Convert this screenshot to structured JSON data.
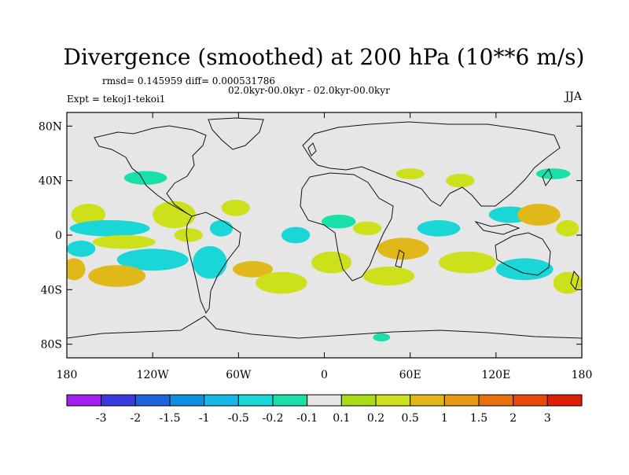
{
  "chart_data": {
    "type": "heatmap",
    "title": "Divergence (smoothed) at 200 hPa (10**6 m/s)",
    "stats": "rmsd= 0.145959 diff= 0.000531786",
    "period": "02.0kyr-00.0kyr - 02.0kyr-00.0kyr",
    "experiment": "Expt = tekoj1-tekoi1",
    "season": "JJA",
    "x_ticks": [
      "180",
      "120W",
      "60W",
      "0",
      "60E",
      "120E",
      "180"
    ],
    "y_ticks": [
      "80N",
      "40N",
      "0",
      "40S",
      "80S"
    ],
    "xlim": [
      -180,
      180
    ],
    "ylim": [
      -90,
      90
    ],
    "colorbar": {
      "labels": [
        "-3",
        "-2",
        "-1.5",
        "-1",
        "-0.5",
        "-0.2",
        "-0.1",
        "0.1",
        "0.2",
        "0.5",
        "1",
        "1.5",
        "2",
        "3"
      ],
      "colors": [
        "#a020f0",
        "#3a3ae0",
        "#1e63d8",
        "#0f8fe0",
        "#16b8e6",
        "#1ad6d6",
        "#19e0a8",
        "#e6e6e6",
        "#a8dc18",
        "#cde01c",
        "#e0b81a",
        "#e89a14",
        "#e8700e",
        "#e84a0a",
        "#e01e06"
      ]
    },
    "regions": [
      {
        "lon": -165,
        "lat": 15,
        "rlon": 12,
        "rlat": 8,
        "v": 0.3
      },
      {
        "lon": -150,
        "lat": 5,
        "rlon": 28,
        "rlat": 6,
        "v": -0.3
      },
      {
        "lon": -140,
        "lat": -5,
        "rlon": 22,
        "rlat": 5,
        "v": 0.3
      },
      {
        "lon": -120,
        "lat": -18,
        "rlon": 25,
        "rlat": 8,
        "v": -0.5
      },
      {
        "lon": -170,
        "lat": -10,
        "rlon": 10,
        "rlat": 6,
        "v": -0.3
      },
      {
        "lon": -175,
        "lat": -25,
        "rlon": 8,
        "rlat": 8,
        "v": 0.5
      },
      {
        "lon": -145,
        "lat": -30,
        "rlon": 20,
        "rlat": 8,
        "v": 0.7
      },
      {
        "lon": -105,
        "lat": 15,
        "rlon": 15,
        "rlat": 10,
        "v": 0.4
      },
      {
        "lon": -95,
        "lat": 0,
        "rlon": 10,
        "rlat": 5,
        "v": 0.3
      },
      {
        "lon": -80,
        "lat": -20,
        "rlon": 12,
        "rlat": 12,
        "v": -0.3
      },
      {
        "lon": -72,
        "lat": 5,
        "rlon": 8,
        "rlat": 6,
        "v": -0.3
      },
      {
        "lon": -62,
        "lat": 20,
        "rlon": 10,
        "rlat": 6,
        "v": 0.3
      },
      {
        "lon": -50,
        "lat": -25,
        "rlon": 14,
        "rlat": 6,
        "v": 0.5
      },
      {
        "lon": -30,
        "lat": -35,
        "rlon": 18,
        "rlat": 8,
        "v": 0.3
      },
      {
        "lon": -20,
        "lat": 0,
        "rlon": 10,
        "rlat": 6,
        "v": -0.3
      },
      {
        "lon": 5,
        "lat": -20,
        "rlon": 14,
        "rlat": 8,
        "v": 0.3
      },
      {
        "lon": -125,
        "lat": 42,
        "rlon": 15,
        "rlat": 5,
        "v": -0.2
      },
      {
        "lon": 10,
        "lat": 10,
        "rlon": 12,
        "rlat": 5,
        "v": -0.2
      },
      {
        "lon": 30,
        "lat": 5,
        "rlon": 10,
        "rlat": 5,
        "v": 0.2
      },
      {
        "lon": 55,
        "lat": -10,
        "rlon": 18,
        "rlat": 8,
        "v": 0.5
      },
      {
        "lon": 45,
        "lat": -30,
        "rlon": 18,
        "rlat": 7,
        "v": 0.3
      },
      {
        "lon": 80,
        "lat": 5,
        "rlon": 15,
        "rlat": 6,
        "v": -0.3
      },
      {
        "lon": 100,
        "lat": -20,
        "rlon": 20,
        "rlat": 8,
        "v": 0.4
      },
      {
        "lon": 130,
        "lat": 15,
        "rlon": 15,
        "rlat": 6,
        "v": -0.3
      },
      {
        "lon": 150,
        "lat": 15,
        "rlon": 15,
        "rlat": 8,
        "v": 0.6
      },
      {
        "lon": 170,
        "lat": 5,
        "rlon": 8,
        "rlat": 6,
        "v": 0.3
      },
      {
        "lon": 140,
        "lat": -25,
        "rlon": 20,
        "rlat": 8,
        "v": -0.3
      },
      {
        "lon": 170,
        "lat": -35,
        "rlon": 10,
        "rlat": 8,
        "v": 0.4
      },
      {
        "lon": 60,
        "lat": 45,
        "rlon": 10,
        "rlat": 4,
        "v": 0.2
      },
      {
        "lon": 95,
        "lat": 40,
        "rlon": 10,
        "rlat": 5,
        "v": 0.2
      },
      {
        "lon": 160,
        "lat": 45,
        "rlon": 12,
        "rlat": 4,
        "v": -0.2
      },
      {
        "lon": 40,
        "lat": -75,
        "rlon": 6,
        "rlat": 3,
        "v": -0.2
      }
    ]
  }
}
